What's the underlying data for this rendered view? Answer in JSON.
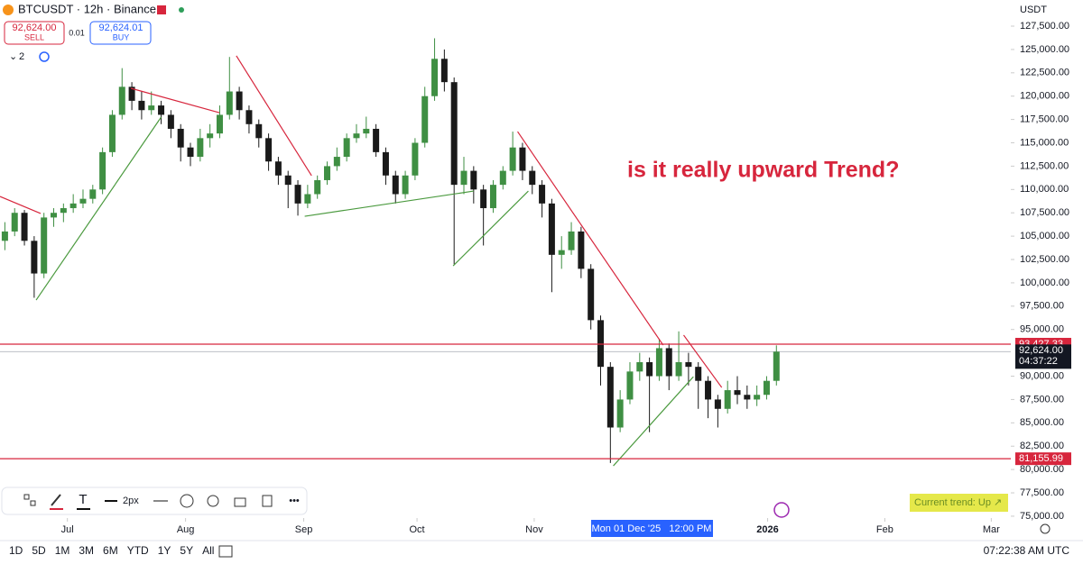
{
  "chart_data": {
    "type": "candlestick",
    "symbol": "BTCUSDT · 12h · Binance",
    "sell": {
      "price": "92,624.00",
      "label": "SELL"
    },
    "spread": "0.01",
    "buy": {
      "price": "92,624.01",
      "label": "BUY"
    },
    "indicator_count": "2",
    "currency": "USDT",
    "annotation": "is it really upward Trend?",
    "trend_badge": "Current trend: Up ↗",
    "crosshair_label": "Mon 01 Dec '25   12:00 PM",
    "up_color": "#3f8f43",
    "down_color": "#1a1a1a",
    "xlim": [
      -0.5,
      103
    ],
    "ylim": [
      74800,
      130300
    ],
    "xticks": [
      {
        "value": 6.4,
        "label": "Jul"
      },
      {
        "value": 18.5,
        "label": "Aug"
      },
      {
        "value": 30.6,
        "label": "Sep"
      },
      {
        "value": 42.2,
        "label": "Oct"
      },
      {
        "value": 54.2,
        "label": "Nov"
      },
      {
        "value": 78.1,
        "label": "2026"
      },
      {
        "value": 90.1,
        "label": "Feb"
      },
      {
        "value": 101,
        "label": "Mar"
      }
    ],
    "yticks": [
      {
        "value": 75000,
        "label": "75,000.00"
      },
      {
        "value": 77500,
        "label": "77,500.00"
      },
      {
        "value": 80000,
        "label": "80,000.00"
      },
      {
        "value": 82500,
        "label": "82,500.00"
      },
      {
        "value": 85000,
        "label": "85,000.00"
      },
      {
        "value": 87500,
        "label": "87,500.00"
      },
      {
        "value": 90000,
        "label": "90,000.00"
      },
      {
        "value": 95000,
        "label": "95,000.00"
      },
      {
        "value": 97500,
        "label": "97,500.00"
      },
      {
        "value": 100000,
        "label": "100,000.00"
      },
      {
        "value": 102500,
        "label": "102,500.00"
      },
      {
        "value": 105000,
        "label": "105,000.00"
      },
      {
        "value": 107500,
        "label": "107,500.00"
      },
      {
        "value": 110000,
        "label": "110,000.00"
      },
      {
        "value": 112500,
        "label": "112,500.00"
      },
      {
        "value": 115000,
        "label": "115,000.00"
      },
      {
        "value": 117500,
        "label": "117,500.00"
      },
      {
        "value": 120000,
        "label": "120,000.00"
      },
      {
        "value": 122500,
        "label": "122,500.00"
      },
      {
        "value": 125000,
        "label": "125,000.00"
      },
      {
        "value": 127500,
        "label": "127,500.00"
      }
    ],
    "candles": [
      [
        104500,
        106500,
        103500,
        105500
      ],
      [
        105500,
        108000,
        105000,
        107500
      ],
      [
        107500,
        107800,
        104000,
        104500
      ],
      [
        104500,
        105000,
        98400,
        101000
      ],
      [
        101000,
        107500,
        100500,
        107000
      ],
      [
        107000,
        108000,
        106000,
        107500
      ],
      [
        107500,
        108500,
        106500,
        108000
      ],
      [
        108000,
        109500,
        107500,
        108500
      ],
      [
        108500,
        110000,
        108000,
        109000
      ],
      [
        109000,
        110500,
        108500,
        110000
      ],
      [
        110000,
        114500,
        109500,
        114000
      ],
      [
        114000,
        118500,
        113500,
        118000
      ],
      [
        118000,
        123000,
        117500,
        121000
      ],
      [
        121000,
        121500,
        118500,
        119500
      ],
      [
        119500,
        120500,
        117500,
        118500
      ],
      [
        118500,
        120500,
        118000,
        119000
      ],
      [
        119000,
        119500,
        117000,
        118000
      ],
      [
        118000,
        118500,
        115500,
        116500
      ],
      [
        116500,
        117000,
        113000,
        114500
      ],
      [
        114500,
        115000,
        112500,
        113500
      ],
      [
        113500,
        116500,
        113000,
        115500
      ],
      [
        115500,
        117000,
        114500,
        116000
      ],
      [
        116000,
        119000,
        115500,
        118000
      ],
      [
        118000,
        124200,
        117500,
        120500
      ],
      [
        120500,
        121000,
        117500,
        118500
      ],
      [
        118500,
        119000,
        116000,
        117000
      ],
      [
        117000,
        117500,
        114500,
        115500
      ],
      [
        115500,
        116000,
        112000,
        113000
      ],
      [
        113000,
        113500,
        110500,
        111500
      ],
      [
        111500,
        112000,
        108000,
        110500
      ],
      [
        110500,
        111000,
        107200,
        108500
      ],
      [
        108500,
        110500,
        108000,
        109500
      ],
      [
        109500,
        111500,
        109000,
        111000
      ],
      [
        111000,
        113000,
        110500,
        112500
      ],
      [
        112500,
        114500,
        112000,
        113500
      ],
      [
        113500,
        116000,
        113000,
        115500
      ],
      [
        115500,
        117000,
        115000,
        116000
      ],
      [
        116000,
        117800,
        115500,
        116500
      ],
      [
        116500,
        117000,
        113500,
        114000
      ],
      [
        114000,
        114500,
        110500,
        111500
      ],
      [
        111500,
        112000,
        108500,
        109500
      ],
      [
        109500,
        112000,
        109000,
        111500
      ],
      [
        111500,
        115500,
        111000,
        115000
      ],
      [
        115000,
        121000,
        114500,
        120000
      ],
      [
        120000,
        126200,
        119500,
        124000
      ],
      [
        124000,
        125000,
        120500,
        121500
      ],
      [
        121500,
        122000,
        102000,
        110500
      ],
      [
        110500,
        113500,
        109500,
        112000
      ],
      [
        112000,
        112500,
        108500,
        110000
      ],
      [
        110000,
        110500,
        104000,
        108000
      ],
      [
        108000,
        111000,
        107500,
        110500
      ],
      [
        110500,
        112500,
        110000,
        112000
      ],
      [
        112000,
        116200,
        111500,
        114500
      ],
      [
        114500,
        115000,
        111000,
        112000
      ],
      [
        112000,
        112500,
        109500,
        110500
      ],
      [
        110500,
        111000,
        107000,
        108500
      ],
      [
        108500,
        109000,
        99000,
        103000
      ],
      [
        103000,
        105000,
        101500,
        103500
      ],
      [
        103500,
        106500,
        103000,
        105500
      ],
      [
        105500,
        106000,
        100500,
        101500
      ],
      [
        101500,
        102000,
        95000,
        96000
      ],
      [
        96000,
        96500,
        89000,
        91000
      ],
      [
        91000,
        91500,
        80700,
        84500
      ],
      [
        84500,
        88500,
        84000,
        87500
      ],
      [
        87500,
        91500,
        87000,
        90500
      ],
      [
        90500,
        92500,
        89500,
        91500
      ],
      [
        91500,
        92000,
        84000,
        90000
      ],
      [
        90000,
        94000,
        89500,
        93000
      ],
      [
        93000,
        93500,
        88500,
        90000
      ],
      [
        90000,
        94800,
        89500,
        91500
      ],
      [
        91500,
        92500,
        89000,
        91000
      ],
      [
        91000,
        91500,
        86500,
        89500
      ],
      [
        89500,
        90000,
        85500,
        87500
      ],
      [
        87500,
        88000,
        84500,
        86500
      ],
      [
        86500,
        89500,
        86000,
        88500
      ],
      [
        88500,
        90000,
        87000,
        88000
      ],
      [
        88000,
        89000,
        86500,
        87500
      ],
      [
        87500,
        89000,
        86800,
        88000
      ],
      [
        88000,
        90000,
        87500,
        89500
      ],
      [
        89500,
        93300,
        89000,
        92624
      ]
    ],
    "trendlines": [
      {
        "color": "#d7263d",
        "points": [
          [
            -0.5,
            109250
          ],
          [
            3.66,
            107430
          ]
        ]
      },
      {
        "color": "#d7263d",
        "points": [
          [
            12.9,
            120840
          ],
          [
            21.96,
            118230
          ]
        ]
      },
      {
        "color": "#d7263d",
        "points": [
          [
            23.7,
            124320
          ],
          [
            31.4,
            111480
          ]
        ]
      },
      {
        "color": "#d7263d",
        "points": [
          [
            52.5,
            116200
          ],
          [
            67.4,
            93330
          ]
        ]
      },
      {
        "color": "#d7263d",
        "points": [
          [
            69.5,
            94400
          ],
          [
            73.4,
            88790
          ]
        ]
      },
      {
        "color": "#4b9a3f",
        "points": [
          [
            3.2,
            98150
          ],
          [
            16,
            117750
          ]
        ]
      },
      {
        "color": "#4b9a3f",
        "points": [
          [
            30.7,
            107130
          ],
          [
            48,
            109830
          ]
        ]
      },
      {
        "color": "#4b9a3f",
        "points": [
          [
            45.9,
            101820
          ],
          [
            53.6,
            109830
          ]
        ]
      },
      {
        "color": "#4b9a3f",
        "points": [
          [
            62.3,
            80390
          ],
          [
            70.5,
            89940
          ]
        ]
      }
    ],
    "hlines": [
      {
        "value": 93427.33,
        "label": "93,427.33",
        "color": "#d7263d"
      },
      {
        "value": 81155.99,
        "label": "81,155.99",
        "color": "#d7263d"
      }
    ],
    "last_price": {
      "value": 92624,
      "label": "92,624.00",
      "countdown": "04:37:22"
    },
    "drawing_toolbar": {
      "width_label": "2px"
    },
    "ranges": [
      "1D",
      "5D",
      "1M",
      "3M",
      "6M",
      "YTD",
      "1Y",
      "5Y",
      "All"
    ],
    "clock": "07:22:38 AM UTC"
  }
}
